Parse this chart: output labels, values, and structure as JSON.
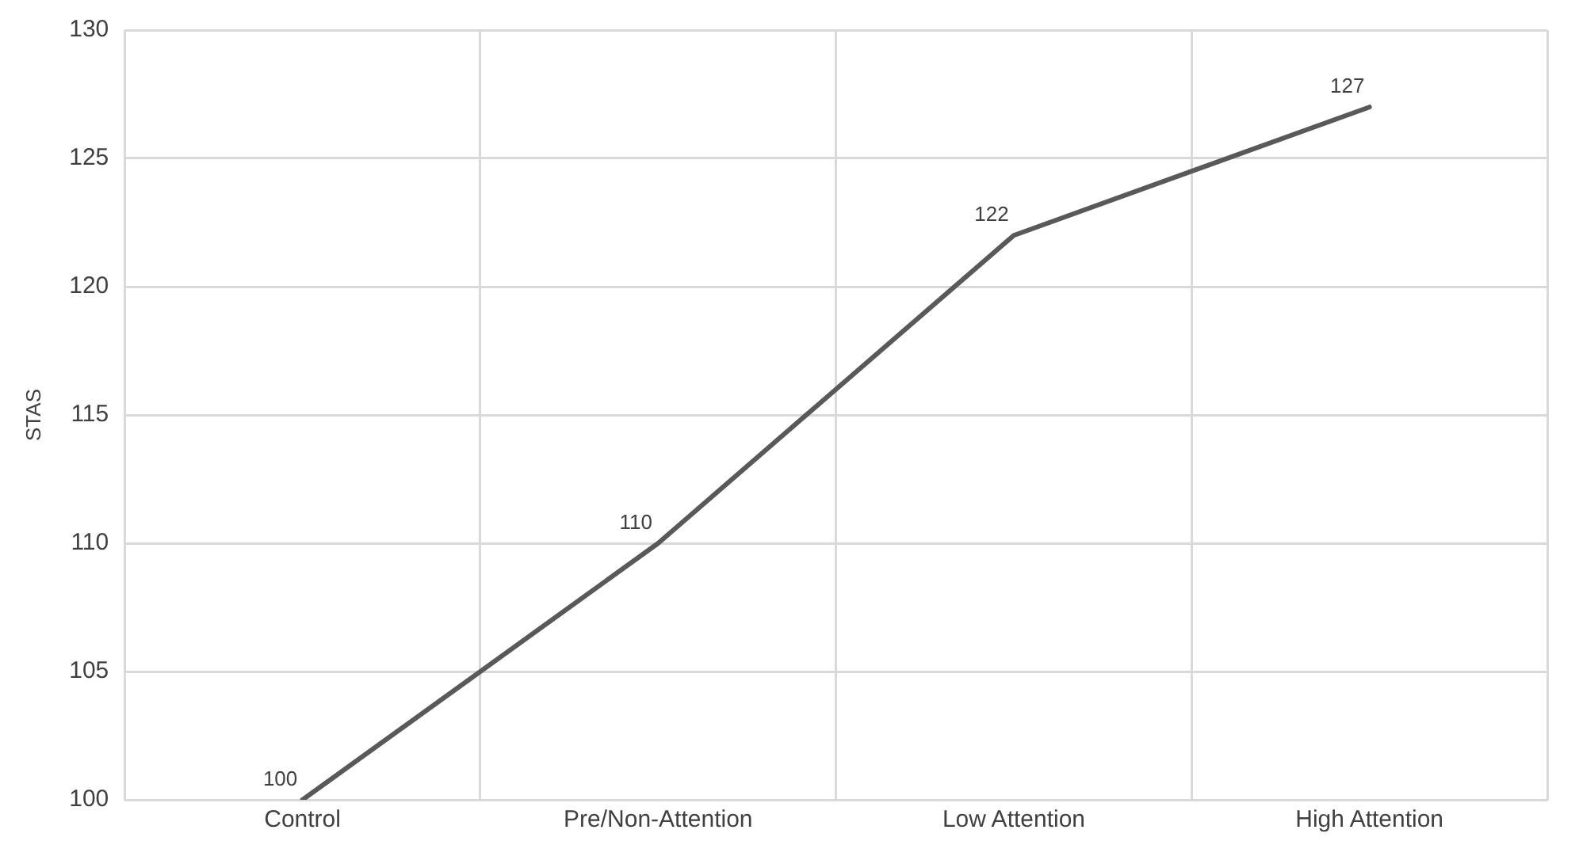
{
  "chart_data": {
    "type": "line",
    "ylabel": "STAS",
    "categories": [
      "Control",
      "Pre/Non-Attention",
      "Low Attention",
      "High Attention"
    ],
    "series": [
      {
        "color": "#595959",
        "values": [
          100,
          110,
          122,
          127
        ]
      }
    ],
    "ylim": [
      100,
      130
    ],
    "yticks": [
      100,
      105,
      110,
      115,
      120,
      125,
      130
    ],
    "grid": true,
    "legend": false,
    "marker": "none",
    "line_style": "solid",
    "data_labels": true
  }
}
